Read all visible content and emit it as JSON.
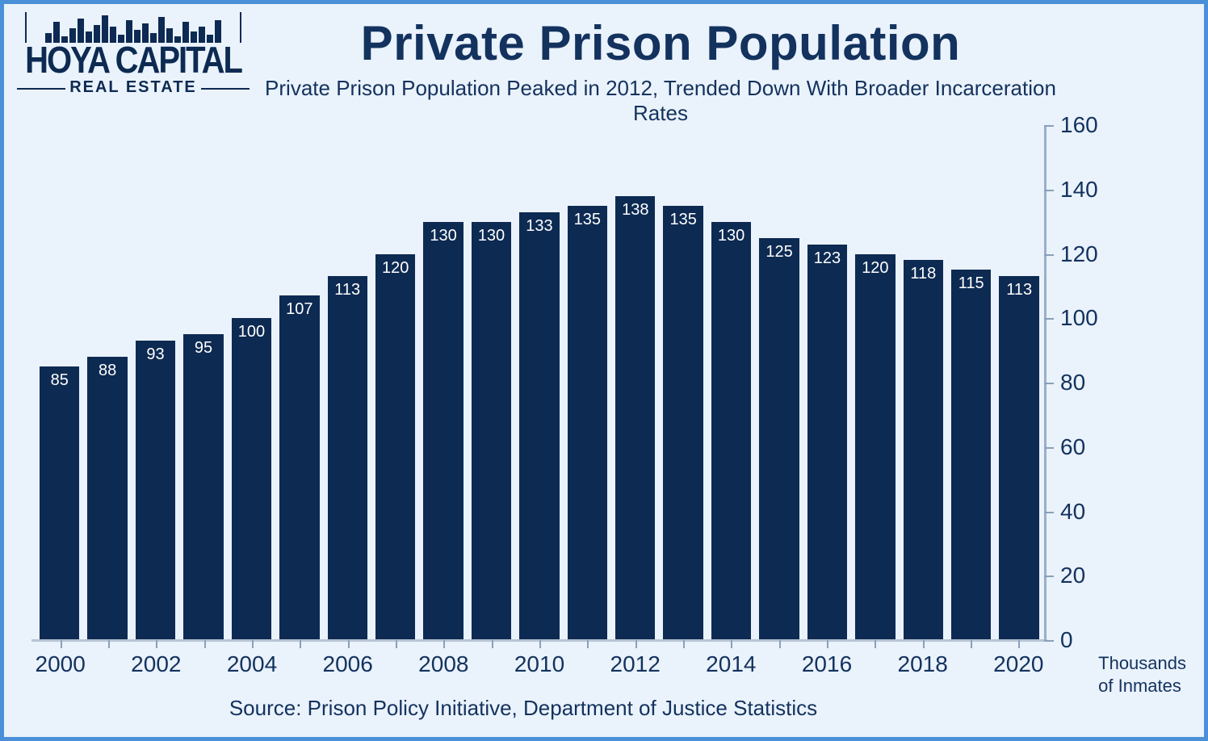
{
  "logo": {
    "line1": "HOYA CAPITAL",
    "line2": "REAL ESTATE",
    "skyline_heights": [
      12,
      26,
      8,
      18,
      30,
      14,
      22,
      34,
      20,
      10,
      28,
      16,
      24,
      12,
      32,
      18,
      8,
      26,
      14,
      20,
      10,
      28
    ]
  },
  "chart": {
    "type": "bar",
    "title": "Private Prison Population",
    "subtitle": "Private Prison Population Peaked in 2012, Trended Down With Broader Incarceration Rates",
    "source": "Source: Prison Policy Initiative, Department of Justice Statistics",
    "y_axis_title_line1": "Thousands",
    "y_axis_title_line2": "of Inmates",
    "bar_color": "#0d2a52",
    "bar_label_color": "#ffffff",
    "background_color": "#eaf2fb",
    "border_color": "#4a90d9",
    "text_color": "#13325e",
    "axis_color": "#9ab0c8",
    "title_fontsize": 60,
    "subtitle_fontsize": 26,
    "label_fontsize": 28,
    "bar_value_fontsize": 20,
    "ylim": [
      0,
      160
    ],
    "ytick_step": 20,
    "yticks": [
      0,
      20,
      40,
      60,
      80,
      100,
      120,
      140,
      160
    ],
    "years": [
      "2000",
      "2001",
      "2002",
      "2003",
      "2004",
      "2005",
      "2006",
      "2007",
      "2008",
      "2009",
      "2010",
      "2011",
      "2012",
      "2013",
      "2014",
      "2015",
      "2016",
      "2017",
      "2018",
      "2019",
      "2020"
    ],
    "values": [
      85,
      88,
      93,
      95,
      100,
      107,
      113,
      120,
      130,
      130,
      133,
      135,
      138,
      135,
      130,
      125,
      123,
      120,
      118,
      115,
      113
    ],
    "x_label_every": 2,
    "bar_gap_ratio": 0.18
  }
}
